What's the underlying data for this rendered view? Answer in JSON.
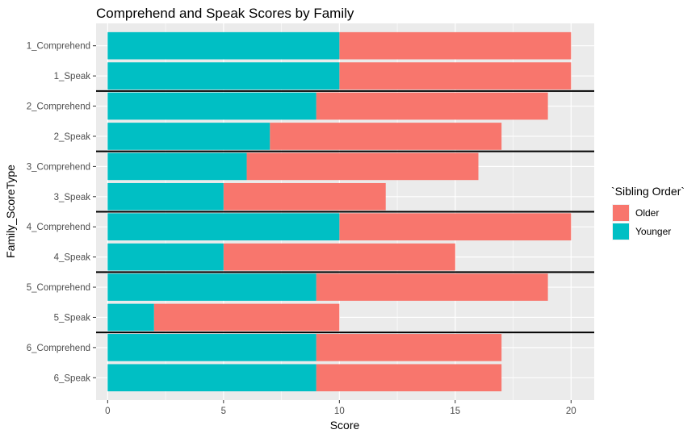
{
  "chart_data": {
    "type": "bar",
    "orientation": "horizontal",
    "stacked": true,
    "title": "Comprehend and Speak Scores by Family",
    "xlabel": "Score",
    "ylabel": "Family_ScoreType",
    "xlim": [
      -0.5,
      21
    ],
    "xticks": [
      0,
      5,
      10,
      15,
      20
    ],
    "grid": true,
    "legend": {
      "title": "`Sibling Order`",
      "position": "right",
      "entries": [
        {
          "name": "Older",
          "color": "#F8766D"
        },
        {
          "name": "Younger",
          "color": "#00BFC4"
        }
      ]
    },
    "categories": [
      "1_Comprehend",
      "1_Speak",
      "2_Comprehend",
      "2_Speak",
      "3_Comprehend",
      "3_Speak",
      "4_Comprehend",
      "4_Speak",
      "5_Comprehend",
      "5_Speak",
      "6_Comprehend",
      "6_Speak"
    ],
    "series": [
      {
        "name": "Younger",
        "color": "#00BFC4",
        "values": [
          10,
          10,
          9,
          7,
          6,
          5,
          10,
          5,
          9,
          2,
          9,
          9
        ]
      },
      {
        "name": "Older",
        "color": "#F8766D",
        "values": [
          10,
          10,
          10,
          10,
          10,
          7,
          10,
          10,
          10,
          8,
          8,
          8
        ]
      }
    ],
    "family_separators_after": [
      "1_Speak",
      "2_Speak",
      "3_Speak",
      "4_Speak",
      "5_Speak"
    ]
  }
}
